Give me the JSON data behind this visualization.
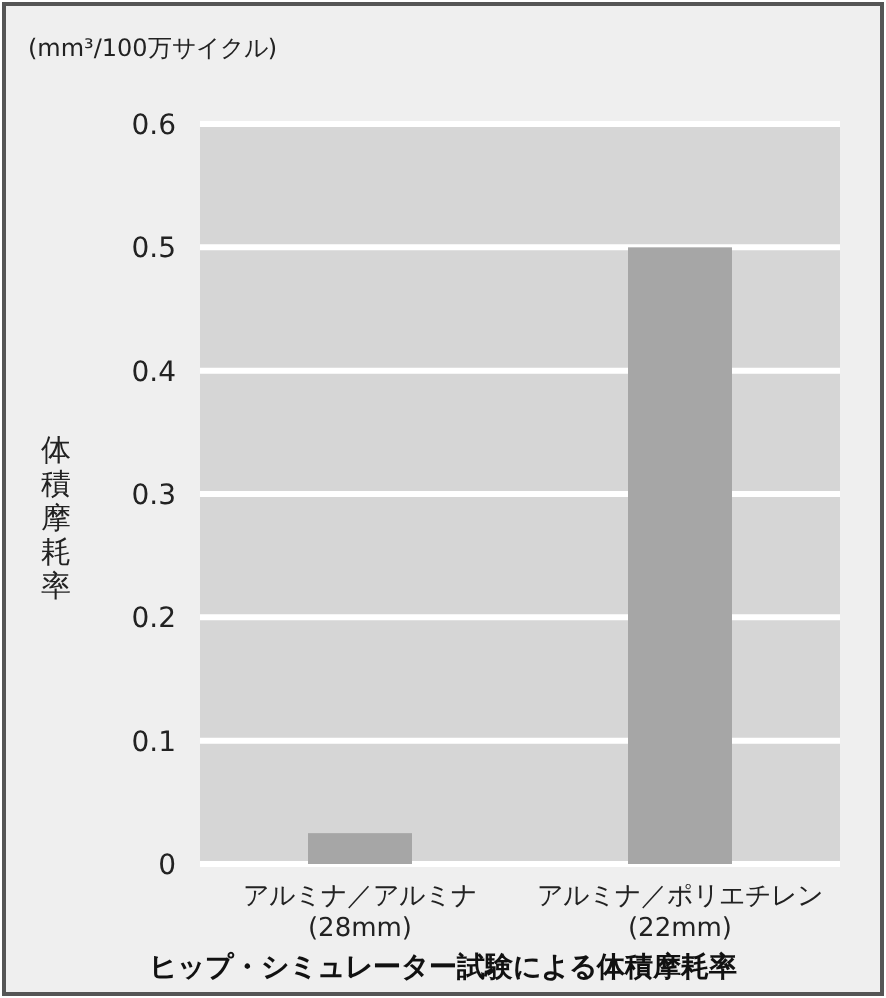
{
  "chart_data": {
    "type": "bar",
    "title": "ヒップ・シミュレーター試験による体積摩耗率",
    "ylabel": "体積摩耗率",
    "annotations": [
      "(mm³/100万サイクル)"
    ],
    "categories": [
      "アルミナ／アルミナ\n(28mm)",
      "アルミナ／ポリエチレン\n(22mm)"
    ],
    "values": [
      0.025,
      0.5
    ],
    "color": "#a6a6a6",
    "ylim": [
      0,
      0.6
    ],
    "yticks": [
      0,
      0.1,
      0.2,
      0.3,
      0.4,
      0.5,
      0.6
    ],
    "grid": "y"
  }
}
